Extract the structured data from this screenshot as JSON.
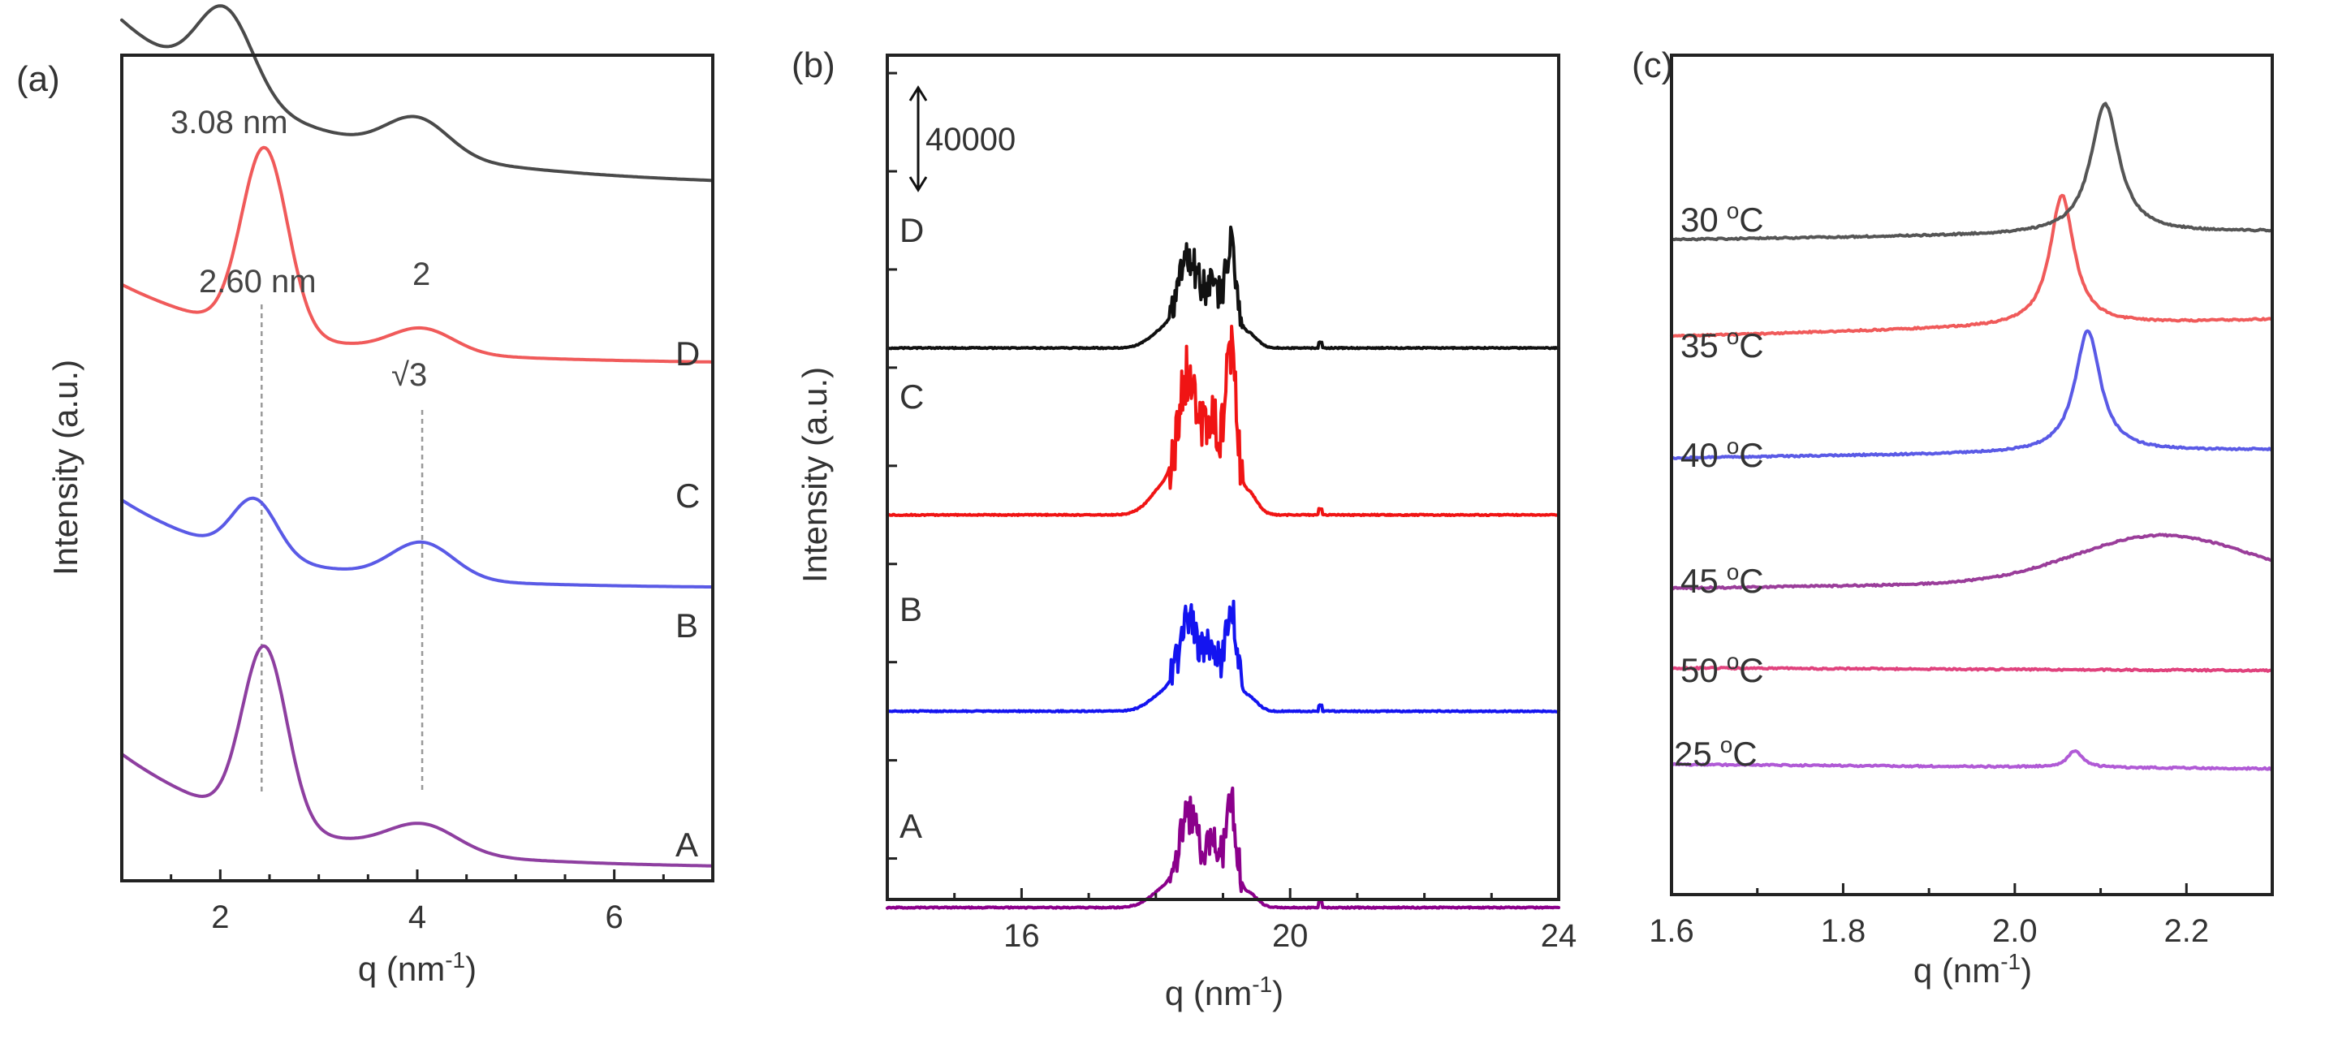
{
  "chart_data": [
    {
      "type": "line",
      "panel_label": "(a)",
      "xlabel": "q (nm",
      "xlabel_sup": "-1",
      "xlabel_close": ")",
      "ylabel": "Intensity (a.u.)",
      "xlim": [
        1,
        7
      ],
      "ylim": [
        0,
        10
      ],
      "xticks": [
        2,
        4,
        6
      ],
      "xtick_labels": [
        "2",
        "4",
        "6"
      ],
      "series": [
        {
          "name": "A",
          "color": "#8e3fa0",
          "peaks": [
            [
              2.45,
              2.2,
              0.32
            ],
            [
              4.05,
              0.35,
              0.5
            ]
          ],
          "decay": [
            2.6,
            1.0,
            1.6
          ],
          "baseline": 0.0
        },
        {
          "name": "B",
          "color": "#5a5ae6",
          "peaks": [
            [
              2.35,
              0.7,
              0.32
            ],
            [
              4.05,
              0.45,
              0.45
            ]
          ],
          "decay": [
            2.0,
            1.0,
            1.4
          ],
          "baseline": 3.5
        },
        {
          "name": "C",
          "color": "#f05a5a",
          "peaks": [
            [
              2.45,
              2.3,
              0.33
            ],
            [
              4.05,
              0.3,
              0.45
            ]
          ],
          "decay": [
            1.8,
            1.0,
            1.6
          ],
          "baseline": 6.3
        },
        {
          "name": "D",
          "color": "#4a4a4a",
          "peaks": [
            [
              2.05,
              1.05,
              0.4
            ],
            [
              4.0,
              0.45,
              0.45
            ]
          ],
          "decay": [
            3.8,
            1.0,
            1.9
          ],
          "baseline": 8.5
        }
      ],
      "annotations": [
        "3.08 nm",
        "2.60 nm",
        "2",
        "√3"
      ],
      "guide_lines_q": [
        2.42,
        4.05
      ]
    },
    {
      "type": "line",
      "panel_label": "(b)",
      "xlabel": "q (nm",
      "xlabel_sup": "-1",
      "xlabel_close": ")",
      "ylabel": "Intensity (a.u.)",
      "xlim": [
        14,
        24
      ],
      "ylim": [
        0,
        4.3
      ],
      "xticks": [
        16,
        20,
        24
      ],
      "xtick_labels": [
        "16",
        "20",
        "24"
      ],
      "scale_bar_label": "40000",
      "series": [
        {
          "name": "A",
          "color": "#8b008b",
          "baseline": 0.0,
          "scale": 0.55
        },
        {
          "name": "B",
          "color": "#1414f0",
          "baseline": 1.0,
          "scale": 0.55
        },
        {
          "name": "C",
          "color": "#f01414",
          "baseline": 2.0,
          "scale": 0.85
        },
        {
          "name": "D",
          "color": "#111111",
          "baseline": 2.85,
          "scale": 0.55
        }
      ]
    },
    {
      "type": "line",
      "panel_label": "(c)",
      "xlabel": "q (nm",
      "xlabel_sup": "-1",
      "xlabel_close": ")",
      "xlim": [
        1.6,
        2.3
      ],
      "ylim": [
        0,
        10
      ],
      "xticks": [
        1.6,
        1.8,
        2.0,
        2.2
      ],
      "xtick_labels": [
        "1.6",
        "1.8",
        "2.0",
        "2.2"
      ],
      "series": [
        {
          "name": "25 °C",
          "color": "#b05ad6",
          "baseline": 1.55,
          "slope": -0.05,
          "peak": [
            2.07,
            0.2,
            0.01
          ],
          "broad": null
        },
        {
          "name": "50 °C",
          "color": "#e0427d",
          "baseline": 2.7,
          "slope": -0.03,
          "peak": null,
          "broad": null
        },
        {
          "name": "45 °C",
          "color": "#9a3d9a",
          "baseline": 3.65,
          "slope": 0.1,
          "peak": null,
          "broad": [
            2.17,
            0.55,
            0.14
          ]
        },
        {
          "name": "40 °C",
          "color": "#5a5ae6",
          "baseline": 5.2,
          "slope": 0.1,
          "peak": [
            2.085,
            1.45,
            0.018
          ],
          "broad": null
        },
        {
          "name": "35 °C",
          "color": "#f05a5a",
          "baseline": 6.65,
          "slope": 0.2,
          "peak": [
            2.055,
            1.55,
            0.017
          ],
          "broad": null
        },
        {
          "name": "30 °C",
          "color": "#555555",
          "baseline": 7.8,
          "slope": 0.1,
          "peak": [
            2.105,
            1.55,
            0.02
          ],
          "broad": null
        }
      ]
    }
  ],
  "legend": {
    "sample_labels": [
      "A",
      "B",
      "C",
      "D"
    ],
    "temperature_labels": [
      {
        "value": "30",
        "sup": "o",
        "unit": "C"
      },
      {
        "value": "35",
        "sup": "o",
        "unit": "C"
      },
      {
        "value": "40",
        "sup": "o",
        "unit": "C"
      },
      {
        "value": "45",
        "sup": "o",
        "unit": "C"
      },
      {
        "value": "50",
        "sup": "o",
        "unit": "C"
      },
      {
        "value": "25",
        "sup": "o",
        "unit": "C"
      }
    ]
  }
}
